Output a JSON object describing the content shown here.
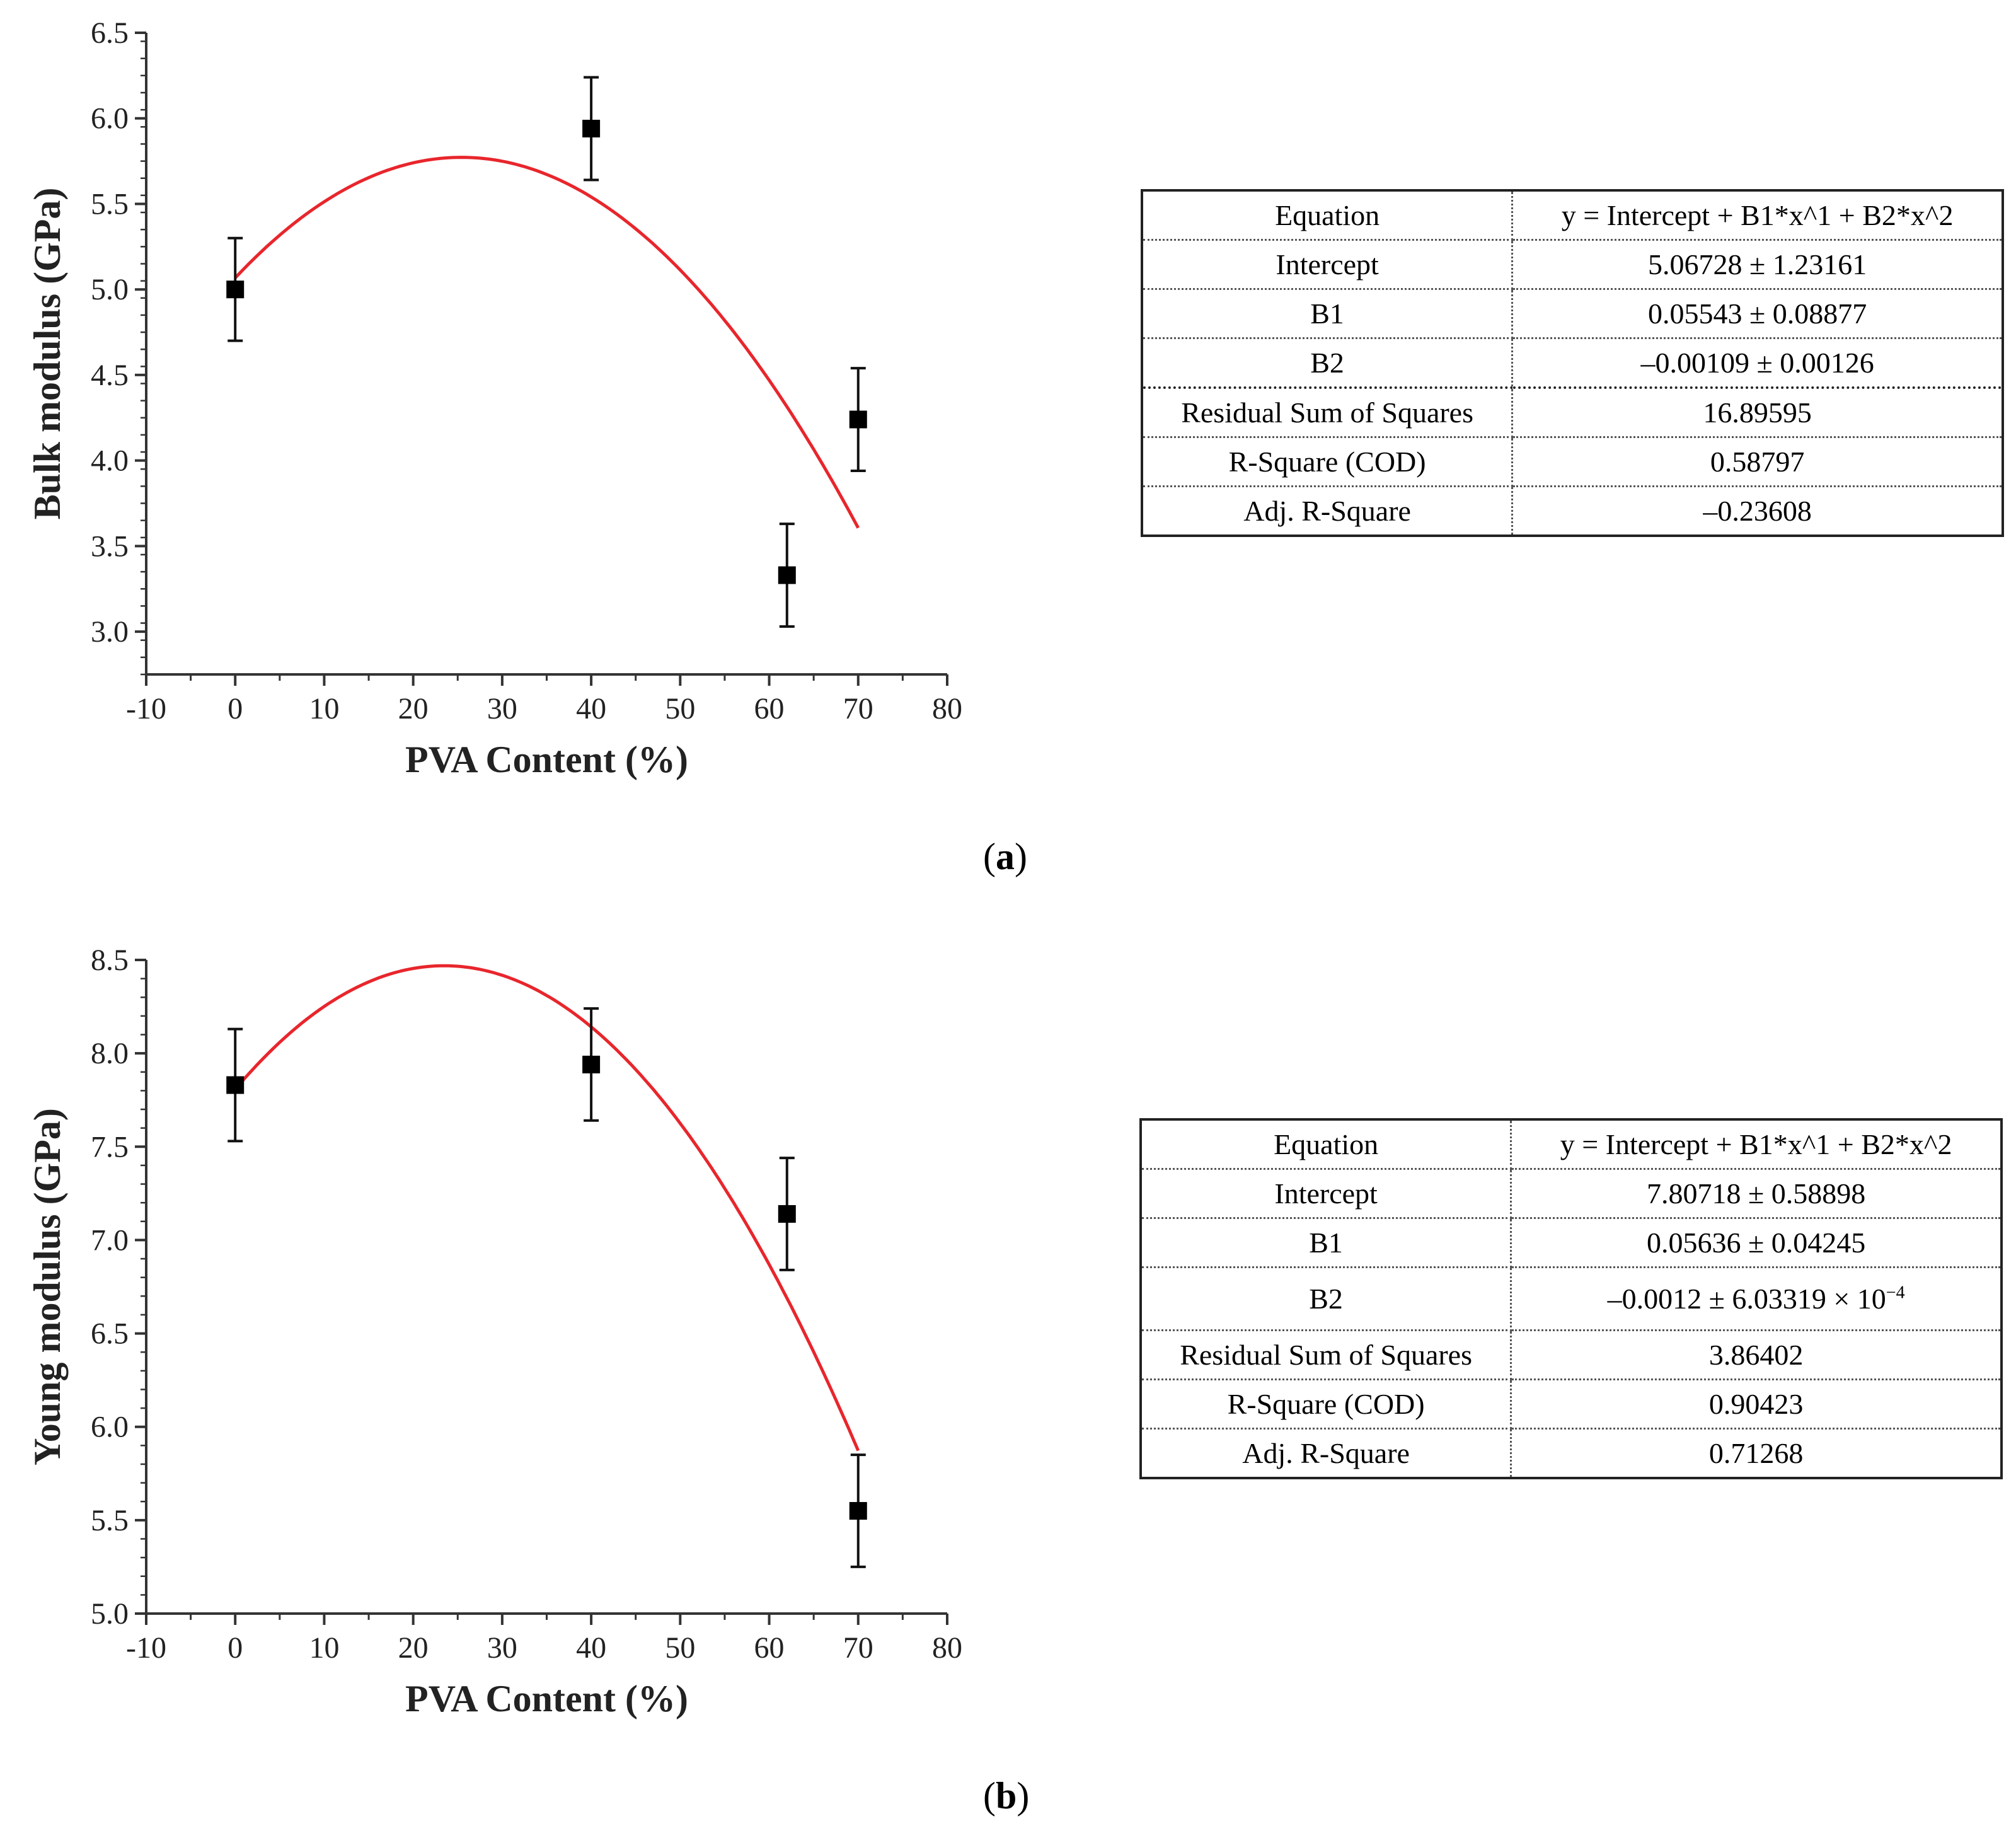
{
  "chart_data": [
    {
      "type": "scatter",
      "panel": "a",
      "xlabel": "PVA Content (%)",
      "ylabel": "Bulk modulus (GPa)",
      "xlim": [
        -10,
        80
      ],
      "ylim": [
        2.75,
        6.5
      ],
      "xticks": [
        "-10",
        "0",
        "10",
        "20",
        "30",
        "40",
        "50",
        "60",
        "70",
        "80"
      ],
      "yticks": [
        "3.0",
        "3.5",
        "4.0",
        "4.5",
        "5.0",
        "5.5",
        "6.0",
        "6.5"
      ],
      "points": [
        {
          "x": 0,
          "y": 5.0,
          "err": 0.3
        },
        {
          "x": 40,
          "y": 5.94,
          "err": 0.3
        },
        {
          "x": 62,
          "y": 3.33,
          "err": 0.3
        },
        {
          "x": 70,
          "y": 4.24,
          "err": 0.3
        }
      ],
      "fit": {
        "type": "quadratic",
        "intercept": 5.06728,
        "b1": 0.05543,
        "b2": -0.00109,
        "x_range": [
          0,
          70
        ]
      },
      "colors": {
        "points": "#000000",
        "fit": "#e8262c"
      },
      "table": [
        {
          "key": "Equation",
          "value": "y = Intercept + B1*x^1 + B2*x^2"
        },
        {
          "key": "Intercept",
          "value": "5.06728 ± 1.23161"
        },
        {
          "key": "B1",
          "value": "0.05543 ± 0.08877"
        },
        {
          "key": "B2",
          "value": "–0.00109 ± 0.00126"
        },
        {
          "key": "Residual Sum of Squares",
          "value": "16.89595"
        },
        {
          "key": "R-Square (COD)",
          "value": "0.58797"
        },
        {
          "key": "Adj. R-Square",
          "value": "–0.23608"
        }
      ]
    },
    {
      "type": "scatter",
      "panel": "b",
      "xlabel": "PVA Content (%)",
      "ylabel": "Young modulus (GPa)",
      "xlim": [
        -10,
        80
      ],
      "ylim": [
        5.0,
        8.5
      ],
      "xticks": [
        "-10",
        "0",
        "10",
        "20",
        "30",
        "40",
        "50",
        "60",
        "70",
        "80"
      ],
      "yticks": [
        "5.0",
        "5.5",
        "6.0",
        "6.5",
        "7.0",
        "7.5",
        "8.0",
        "8.5"
      ],
      "points": [
        {
          "x": 0,
          "y": 7.83,
          "err": 0.3
        },
        {
          "x": 40,
          "y": 7.94,
          "err": 0.3
        },
        {
          "x": 62,
          "y": 7.14,
          "err": 0.3
        },
        {
          "x": 70,
          "y": 5.55,
          "err": 0.3
        }
      ],
      "fit": {
        "type": "quadratic",
        "intercept": 7.80718,
        "b1": 0.05636,
        "b2": -0.0012,
        "x_range": [
          0,
          70
        ]
      },
      "colors": {
        "points": "#000000",
        "fit": "#e8262c"
      },
      "table": [
        {
          "key": "Equation",
          "value": "y = Intercept + B1*x^1 + B2*x^2"
        },
        {
          "key": "Intercept",
          "value": "7.80718 ± 0.58898"
        },
        {
          "key": "B1",
          "value": "0.05636 ± 0.04245"
        },
        {
          "key": "B2",
          "value": "–0.0012 ± 6.03319 × 10",
          "sup": "−4"
        },
        {
          "key": "Residual Sum of Squares",
          "value": "3.86402"
        },
        {
          "key": "R-Square (COD)",
          "value": "0.90423"
        },
        {
          "key": "Adj. R-Square",
          "value": "0.71268"
        }
      ]
    }
  ],
  "labels": {
    "a": "a",
    "b": "b"
  }
}
